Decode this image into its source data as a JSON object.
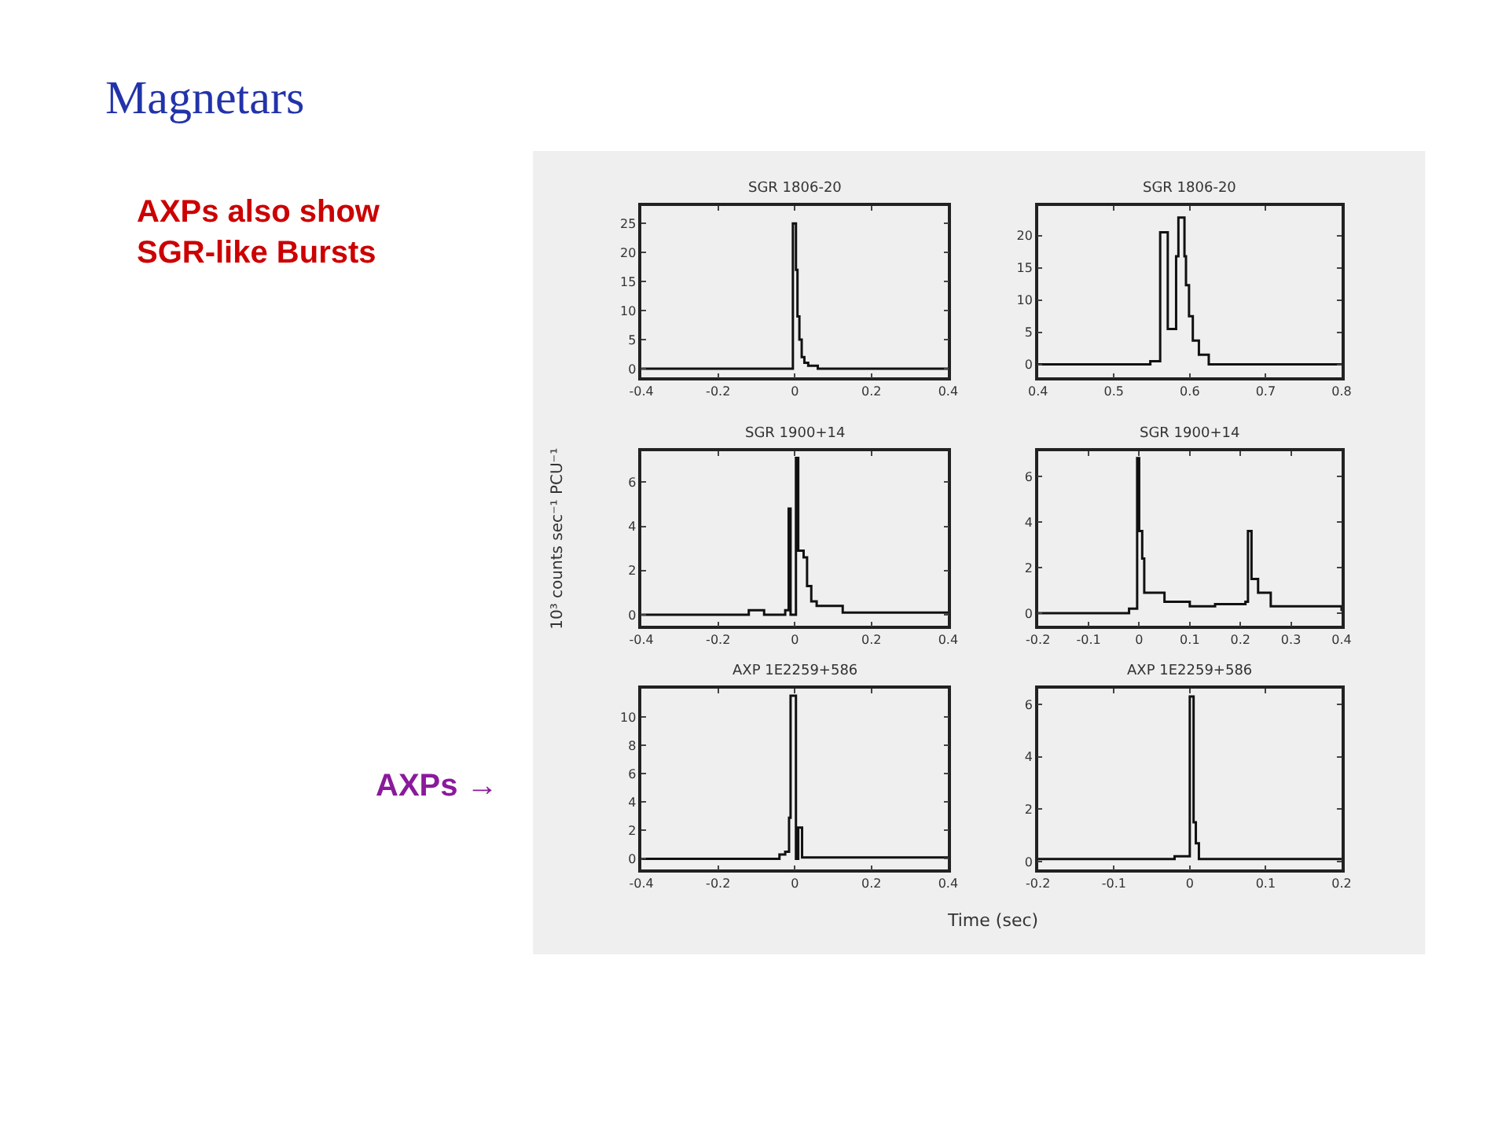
{
  "chart_data": [
    {
      "type": "other",
      "title": "Magnetars",
      "annotations": [
        "AXPs also show SGR-like Bursts",
        "AXPs →"
      ]
    },
    {
      "type": "step",
      "title": "SGR 1806-20",
      "color": "#111111",
      "x": [
        -0.4,
        -0.01,
        -0.005,
        0.003,
        0.007,
        0.012,
        0.018,
        0.025,
        0.035,
        0.06,
        0.4
      ],
      "values": [
        0,
        0,
        25,
        17,
        9,
        5,
        2,
        1,
        0.5,
        0,
        0
      ],
      "xlim": [
        -0.4,
        0.4
      ],
      "xticks": [
        -0.4,
        -0.2,
        0.0,
        0.2,
        0.4
      ],
      "ylim": [
        -1.5,
        28
      ],
      "yticks": [
        0,
        5,
        10,
        15,
        20,
        25
      ],
      "grid": false
    },
    {
      "type": "step",
      "title": "SGR 1806-20",
      "color": "#111111",
      "x": [
        0.4,
        0.548,
        0.561,
        0.571,
        0.582,
        0.585,
        0.593,
        0.595,
        0.599,
        0.604,
        0.612,
        0.625,
        0.8
      ],
      "values": [
        0,
        0.5,
        20.5,
        5.5,
        16.8,
        22.8,
        16.8,
        12.3,
        7.5,
        3.7,
        1.5,
        0,
        0
      ],
      "xlim": [
        0.4,
        0.8
      ],
      "xticks": [
        0.4,
        0.5,
        0.6,
        0.7,
        0.8
      ],
      "ylim": [
        -2,
        24.6
      ],
      "yticks": [
        0,
        5,
        10,
        15,
        20
      ],
      "grid": false
    },
    {
      "type": "step",
      "title": "SGR 1900+14",
      "color": "#111111",
      "ylabel": "10³ counts sec⁻¹ PCU⁻¹",
      "x": [
        -0.4,
        -0.12,
        -0.08,
        -0.025,
        -0.016,
        -0.011,
        0.003,
        0.009,
        0.023,
        0.032,
        0.043,
        0.057,
        0.125,
        0.4
      ],
      "values": [
        0,
        0.2,
        0,
        0.2,
        4.8,
        0,
        7.1,
        2.9,
        2.6,
        1.3,
        0.6,
        0.4,
        0.1,
        0.1
      ],
      "xlim": [
        -0.4,
        0.4
      ],
      "xticks": [
        -0.4,
        -0.2,
        0.0,
        0.2,
        0.4
      ],
      "ylim": [
        -0.5,
        7.4
      ],
      "yticks": [
        0,
        2,
        4,
        6
      ],
      "grid": false
    },
    {
      "type": "step",
      "title": "SGR 1900+14",
      "color": "#111111",
      "x": [
        -0.2,
        -0.02,
        -0.004,
        0.0,
        0.006,
        0.01,
        0.05,
        0.1,
        0.15,
        0.21,
        0.215,
        0.222,
        0.235,
        0.26,
        0.4
      ],
      "values": [
        0,
        0.2,
        6.8,
        3.6,
        2.4,
        0.9,
        0.5,
        0.3,
        0.4,
        0.5,
        3.6,
        1.5,
        0.9,
        0.3,
        0.1
      ],
      "xlim": [
        -0.2,
        0.4
      ],
      "xticks": [
        -0.2,
        -0.1,
        0.0,
        0.1,
        0.2,
        0.3,
        0.4
      ],
      "ylim": [
        -0.55,
        7.1
      ],
      "yticks": [
        0,
        2,
        4,
        6
      ],
      "grid": false
    },
    {
      "type": "step",
      "title": "AXP 1E2259+586",
      "color": "#111111",
      "xlabel": "Time (sec)",
      "x": [
        -0.4,
        -0.04,
        -0.025,
        -0.015,
        -0.011,
        0.003,
        0.009,
        0.019,
        0.4
      ],
      "values": [
        0,
        0.3,
        0.5,
        2.9,
        11.5,
        0,
        2.2,
        0.1,
        0.1
      ],
      "xlim": [
        -0.4,
        0.4
      ],
      "xticks": [
        -0.4,
        -0.2,
        0.0,
        0.2,
        0.4
      ],
      "ylim": [
        -0.75,
        12
      ],
      "yticks": [
        0,
        2,
        4,
        6,
        8,
        10
      ],
      "grid": false
    },
    {
      "type": "step",
      "title": "AXP 1E2259+586",
      "color": "#111111",
      "x": [
        -0.2,
        -0.02,
        0.0,
        0.005,
        0.008,
        0.012,
        0.2
      ],
      "values": [
        0.1,
        0.2,
        6.3,
        1.5,
        0.7,
        0.1,
        0.1
      ],
      "xlim": [
        -0.2,
        0.2
      ],
      "xticks": [
        -0.2,
        -0.1,
        0.0,
        0.1,
        0.2
      ],
      "ylim": [
        -0.3,
        6.6
      ],
      "yticks": [
        0,
        2,
        4,
        6
      ],
      "grid": false
    }
  ]
}
